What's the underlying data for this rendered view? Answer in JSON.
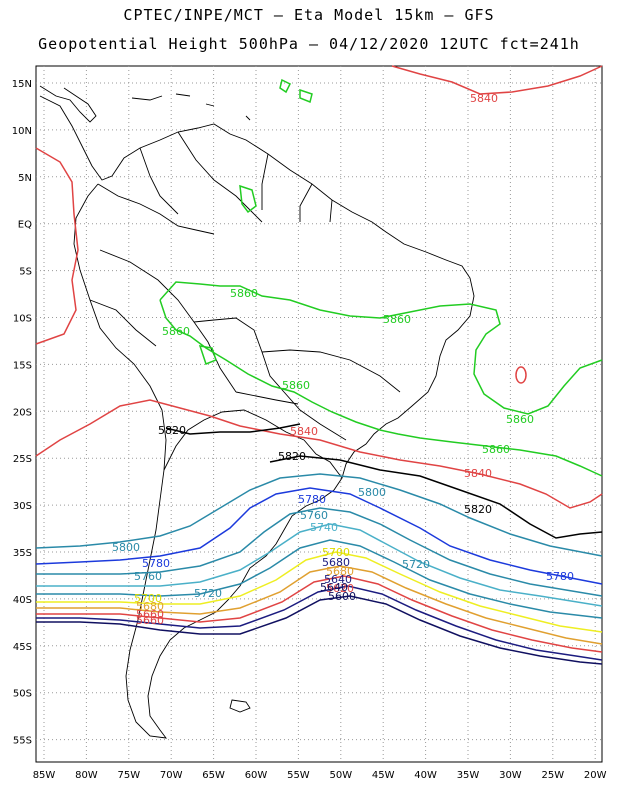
{
  "header": {
    "line1": "CPTEC/INPE/MCT –  Eta Model 15km – GFS",
    "line2": "Geopotential Height 500hPa – 04/12/2020 12UTC fct=241h"
  },
  "axes": {
    "lat_labels": [
      "15N",
      "10N",
      "5N",
      "EQ",
      "5S",
      "10S",
      "15S",
      "20S",
      "25S",
      "30S",
      "35S",
      "40S",
      "45S",
      "50S",
      "55S"
    ],
    "lon_labels": [
      "85W",
      "80W",
      "75W",
      "70W",
      "65W",
      "60W",
      "55W",
      "50W",
      "45W",
      "40W",
      "35W",
      "30W",
      "25W",
      "20W"
    ]
  },
  "colors": {
    "c5860": "#22cc22",
    "c5840": "#e04444",
    "c5820": "#000000",
    "c5800": "#2a8aa8",
    "c5780": "#1c3adc",
    "c5760": "#2a8aa8",
    "c5740": "#4ab0c8",
    "c5720": "#2a8aa8",
    "c5700": "#eeee22",
    "c5680": "#e0a030",
    "c5660": "#e04444",
    "c5640": "#1c1c80",
    "c5600": "#101060",
    "coast": "#000000",
    "grid": "#9a9a9a"
  },
  "contour_labels": {
    "l1": "5840",
    "l2": "5860",
    "l3": "5860",
    "l4": "5860",
    "l5": "5860",
    "l6": "5860",
    "l7": "5860",
    "l8": "5840",
    "l9": "5840",
    "l10": "5820",
    "l11": "5820",
    "l12": "5820",
    "l13": "5800",
    "l14": "5780",
    "l15": "5800",
    "l16": "5780",
    "l17": "5760",
    "l18": "5760",
    "l19": "5740",
    "l20": "5720",
    "l21": "5720",
    "l22": "5700",
    "l23": "5680",
    "l24": "5700",
    "l25": "5660",
    "l26": "5680",
    "l27": "5640",
    "l28": "5620",
    "l29": "5600",
    "l30": "5780",
    "l31": "5680",
    "l32": "5660",
    "l33": "5640"
  }
}
